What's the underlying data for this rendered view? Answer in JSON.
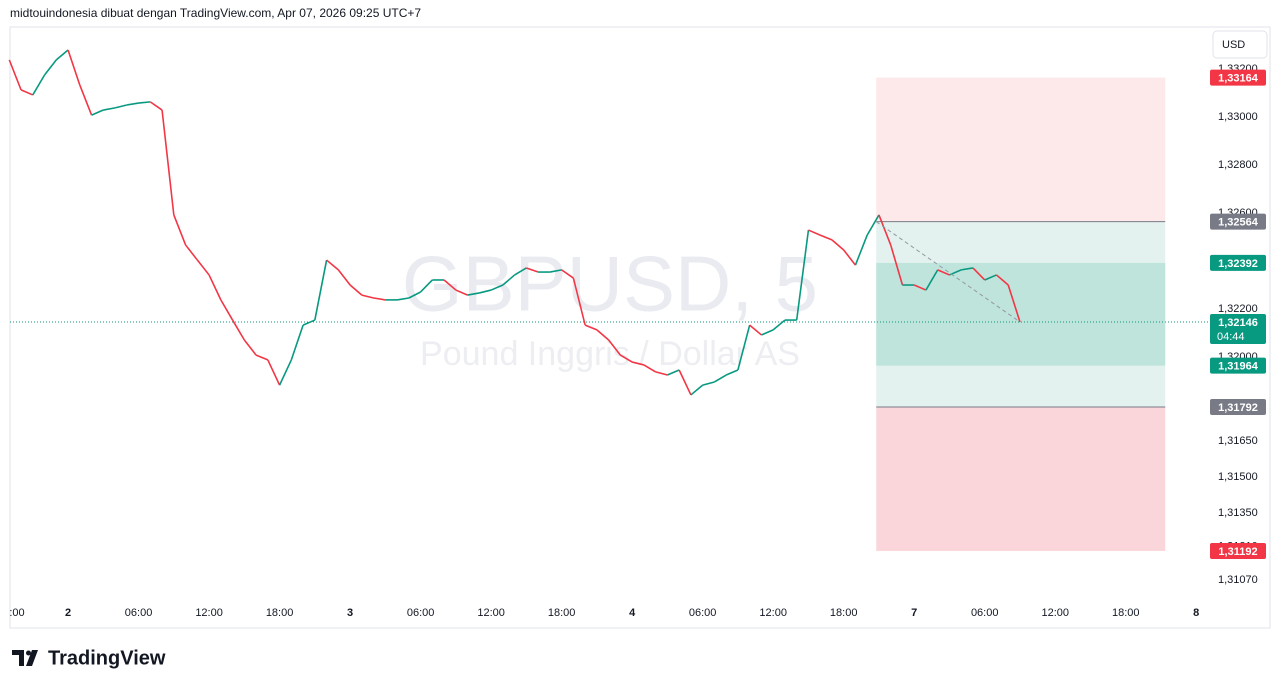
{
  "header": "midtouindonesia dibuat dengan TradingView.com, Apr 07, 2026 09:25 UTC+7",
  "currency_button": "USD",
  "footer_logo": "TradingView",
  "chart_data": {
    "type": "line",
    "watermark": "GBPUSD, 5",
    "watermark_subtitle": "Pound Inggris / Dollar AS",
    "up_color": "#089981",
    "down_color": "#f23645",
    "grid": false,
    "x": [
      -5,
      -4,
      -3,
      -2,
      -1,
      0,
      1,
      2,
      3,
      4,
      5,
      6,
      7,
      8,
      9,
      10,
      11,
      12,
      13,
      14,
      15,
      16,
      17,
      18,
      19,
      20,
      21,
      22,
      23,
      24,
      25,
      26,
      27,
      28,
      29,
      30,
      31,
      32,
      33,
      34,
      35,
      36,
      37,
      38,
      39,
      40,
      41,
      42,
      43,
      44,
      45,
      46,
      47,
      48,
      49,
      50,
      51,
      52,
      53,
      54,
      55,
      56,
      57,
      58,
      59,
      60,
      61,
      62,
      63,
      64,
      65,
      66,
      67,
      68,
      69,
      70,
      71,
      72,
      73,
      74,
      75,
      76,
      77,
      78,
      79,
      80,
      81
    ],
    "values": [
      1.33238,
      1.33113,
      1.33092,
      1.33175,
      1.33238,
      1.33279,
      1.33133,
      1.33008,
      1.33029,
      1.33038,
      1.3305,
      1.33058,
      1.33063,
      1.33029,
      1.32592,
      1.32467,
      1.32404,
      1.32342,
      1.32238,
      1.32154,
      1.32071,
      1.32008,
      1.31988,
      1.31883,
      1.31988,
      1.32133,
      1.32154,
      1.32404,
      1.32363,
      1.323,
      1.32258,
      1.32246,
      1.32238,
      1.32238,
      1.32246,
      1.32271,
      1.32321,
      1.32321,
      1.32279,
      1.32258,
      1.32267,
      1.32279,
      1.323,
      1.32342,
      1.32371,
      1.32354,
      1.32354,
      1.32363,
      1.32329,
      1.32133,
      1.32113,
      1.32071,
      1.32008,
      1.31979,
      1.31967,
      1.31938,
      1.31925,
      1.31946,
      1.31842,
      1.31883,
      1.31896,
      1.31925,
      1.31946,
      1.32133,
      1.32092,
      1.32113,
      1.32154,
      1.32154,
      1.32529,
      1.32508,
      1.32488,
      1.32446,
      1.32383,
      1.32508,
      1.32592,
      1.32467,
      1.323,
      1.323,
      1.32279,
      1.32363,
      1.32342,
      1.32363,
      1.32371,
      1.32321,
      1.32342,
      1.323,
      1.32146
    ],
    "xlim": [
      -4.94,
      97.0
    ],
    "xticks": [
      {
        "value": -6,
        "label": ":00"
      },
      {
        "value": 0,
        "label": "2"
      },
      {
        "value": 6,
        "label": "06:00"
      },
      {
        "value": 12,
        "label": "12:00"
      },
      {
        "value": 18,
        "label": "18:00"
      },
      {
        "value": 24,
        "label": "3"
      },
      {
        "value": 30,
        "label": "06:00"
      },
      {
        "value": 36,
        "label": "12:00"
      },
      {
        "value": 42,
        "label": "18:00"
      },
      {
        "value": 48,
        "label": "4"
      },
      {
        "value": 54,
        "label": "06:00"
      },
      {
        "value": 60,
        "label": "12:00"
      },
      {
        "value": 66,
        "label": "18:00"
      },
      {
        "value": 72,
        "label": "7"
      },
      {
        "value": 78,
        "label": "06:00"
      },
      {
        "value": 84,
        "label": "12:00"
      },
      {
        "value": 90,
        "label": "18:00"
      },
      {
        "value": 96,
        "label": "8"
      }
    ],
    "ylim": [
      1.30871,
      1.33375
    ],
    "yticks": [
      {
        "value": 1.332,
        "label": "1,33200"
      },
      {
        "value": 1.33,
        "label": "1,33000"
      },
      {
        "value": 1.328,
        "label": "1,32800"
      },
      {
        "value": 1.326,
        "label": "1,32600"
      },
      {
        "value": 1.322,
        "label": "1,32200"
      },
      {
        "value": 1.32,
        "label": "1,32000"
      },
      {
        "value": 1.3165,
        "label": "1,31650"
      },
      {
        "value": 1.315,
        "label": "1,31500"
      },
      {
        "value": 1.3135,
        "label": "1,31350"
      },
      {
        "value": 1.3121,
        "label": "1,31210"
      },
      {
        "value": 1.3107,
        "label": "1,31070"
      }
    ],
    "zone_x": [
      68.77,
      93.36
    ],
    "zones": [
      {
        "from": 1.32564,
        "to": 1.33164,
        "color": "#fde9ea"
      },
      {
        "from": 1.31792,
        "to": 1.32564,
        "color": "#e3f2ef"
      },
      {
        "from": 1.31964,
        "to": 1.32392,
        "color": "#bfe4dc"
      },
      {
        "from": 1.31192,
        "to": 1.31792,
        "color": "#fad6da"
      }
    ],
    "level_lines": [
      1.32564,
      1.31792
    ],
    "price_labels": [
      {
        "value": 1.33164,
        "label": "1,33164",
        "color": "#f23645"
      },
      {
        "value": 1.32564,
        "label": "1,32564",
        "color": "#787b86"
      },
      {
        "value": 1.32392,
        "label": "1,32392",
        "color": "#089981"
      },
      {
        "value": 1.31964,
        "label": "1,31964",
        "color": "#089981"
      },
      {
        "value": 1.31792,
        "label": "1,31792",
        "color": "#787b86"
      },
      {
        "value": 1.31192,
        "label": "1,31192",
        "color": "#f23645"
      }
    ],
    "last_price": {
      "value": 1.32146,
      "label": "1,32146",
      "countdown": "04:44",
      "color": "#089981"
    }
  }
}
